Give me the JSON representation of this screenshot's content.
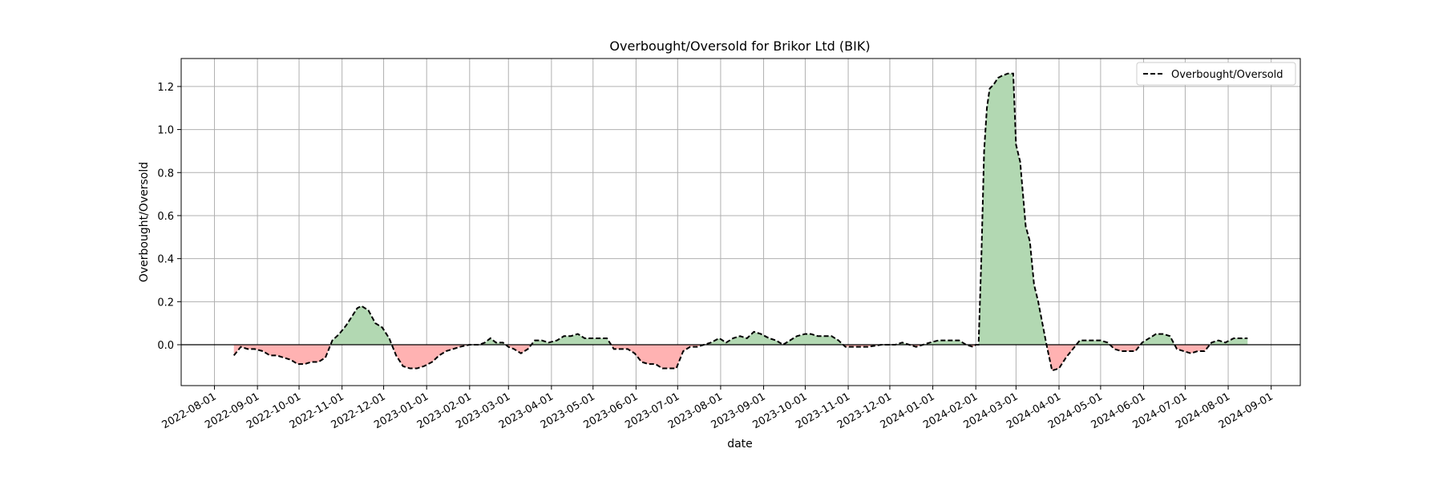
{
  "chart_data": {
    "type": "area",
    "title": "Overbought/Oversold for Brikor Ltd (BIK)",
    "xlabel": "date",
    "ylabel": "Overbought/Oversold",
    "xlim": [
      "2022-07-08",
      "2024-09-22"
    ],
    "ylim": [
      -0.19,
      1.33
    ],
    "grid": true,
    "legend": {
      "position": "top-right",
      "entries": [
        "Overbought/Oversold"
      ]
    },
    "x_ticks": [
      "2022-08-01",
      "2022-09-01",
      "2022-10-01",
      "2022-11-01",
      "2022-12-01",
      "2023-01-01",
      "2023-02-01",
      "2023-03-01",
      "2023-04-01",
      "2023-05-01",
      "2023-06-01",
      "2023-07-01",
      "2023-08-01",
      "2023-09-01",
      "2023-10-01",
      "2023-11-01",
      "2023-12-01",
      "2024-01-01",
      "2024-02-01",
      "2024-03-01",
      "2024-04-01",
      "2024-05-01",
      "2024-06-01",
      "2024-07-01",
      "2024-08-01",
      "2024-09-01"
    ],
    "y_ticks": [
      "0.0",
      "0.2",
      "0.4",
      "0.6",
      "0.8",
      "1.0",
      "1.2"
    ],
    "colors": {
      "line": "#000000",
      "positive_fill": "#b2d8b2",
      "negative_fill": "#ffb2b2",
      "zero_line": "#000000",
      "grid": "#b0b0b0"
    },
    "series": [
      {
        "name": "Overbought/Oversold",
        "line_style": "dashed",
        "points": [
          [
            "2022-08-15",
            -0.05
          ],
          [
            "2022-08-20",
            -0.01
          ],
          [
            "2022-08-25",
            -0.02
          ],
          [
            "2022-08-30",
            -0.02
          ],
          [
            "2022-09-05",
            -0.03
          ],
          [
            "2022-09-10",
            -0.05
          ],
          [
            "2022-09-15",
            -0.05
          ],
          [
            "2022-09-20",
            -0.06
          ],
          [
            "2022-09-25",
            -0.07
          ],
          [
            "2022-09-30",
            -0.09
          ],
          [
            "2022-10-05",
            -0.09
          ],
          [
            "2022-10-10",
            -0.08
          ],
          [
            "2022-10-15",
            -0.08
          ],
          [
            "2022-10-20",
            -0.06
          ],
          [
            "2022-10-25",
            0.02
          ],
          [
            "2022-10-30",
            0.05
          ],
          [
            "2022-11-04",
            0.09
          ],
          [
            "2022-11-08",
            0.13
          ],
          [
            "2022-11-12",
            0.17
          ],
          [
            "2022-11-15",
            0.18
          ],
          [
            "2022-11-20",
            0.16
          ],
          [
            "2022-11-25",
            0.1
          ],
          [
            "2022-11-30",
            0.08
          ],
          [
            "2022-12-05",
            0.03
          ],
          [
            "2022-12-10",
            -0.05
          ],
          [
            "2022-12-15",
            -0.1
          ],
          [
            "2022-12-20",
            -0.11
          ],
          [
            "2022-12-25",
            -0.11
          ],
          [
            "2022-12-30",
            -0.1
          ],
          [
            "2023-01-05",
            -0.08
          ],
          [
            "2023-01-10",
            -0.05
          ],
          [
            "2023-01-15",
            -0.03
          ],
          [
            "2023-01-20",
            -0.02
          ],
          [
            "2023-01-25",
            -0.01
          ],
          [
            "2023-02-01",
            0.0
          ],
          [
            "2023-02-08",
            0.0
          ],
          [
            "2023-02-12",
            0.01
          ],
          [
            "2023-02-16",
            0.03
          ],
          [
            "2023-02-20",
            0.01
          ],
          [
            "2023-02-25",
            0.01
          ],
          [
            "2023-03-01",
            -0.01
          ],
          [
            "2023-03-05",
            -0.02
          ],
          [
            "2023-03-10",
            -0.04
          ],
          [
            "2023-03-15",
            -0.02
          ],
          [
            "2023-03-20",
            0.02
          ],
          [
            "2023-03-25",
            0.02
          ],
          [
            "2023-03-30",
            0.01
          ],
          [
            "2023-04-05",
            0.02
          ],
          [
            "2023-04-10",
            0.04
          ],
          [
            "2023-04-15",
            0.04
          ],
          [
            "2023-04-20",
            0.05
          ],
          [
            "2023-04-25",
            0.03
          ],
          [
            "2023-05-01",
            0.03
          ],
          [
            "2023-05-06",
            0.03
          ],
          [
            "2023-05-11",
            0.03
          ],
          [
            "2023-05-16",
            -0.02
          ],
          [
            "2023-05-21",
            -0.02
          ],
          [
            "2023-05-26",
            -0.02
          ],
          [
            "2023-05-31",
            -0.04
          ],
          [
            "2023-06-05",
            -0.08
          ],
          [
            "2023-06-10",
            -0.09
          ],
          [
            "2023-06-15",
            -0.09
          ],
          [
            "2023-06-20",
            -0.11
          ],
          [
            "2023-06-25",
            -0.11
          ],
          [
            "2023-06-30",
            -0.11
          ],
          [
            "2023-07-05",
            -0.03
          ],
          [
            "2023-07-10",
            -0.01
          ],
          [
            "2023-07-15",
            -0.01
          ],
          [
            "2023-07-20",
            0.0
          ],
          [
            "2023-07-25",
            0.01
          ],
          [
            "2023-07-31",
            0.03
          ],
          [
            "2023-08-05",
            0.01
          ],
          [
            "2023-08-10",
            0.03
          ],
          [
            "2023-08-15",
            0.04
          ],
          [
            "2023-08-20",
            0.03
          ],
          [
            "2023-08-25",
            0.06
          ],
          [
            "2023-08-30",
            0.05
          ],
          [
            "2023-09-05",
            0.03
          ],
          [
            "2023-09-10",
            0.02
          ],
          [
            "2023-09-15",
            0.0
          ],
          [
            "2023-09-20",
            0.02
          ],
          [
            "2023-09-25",
            0.04
          ],
          [
            "2023-10-01",
            0.05
          ],
          [
            "2023-10-05",
            0.05
          ],
          [
            "2023-10-10",
            0.04
          ],
          [
            "2023-10-15",
            0.04
          ],
          [
            "2023-10-20",
            0.04
          ],
          [
            "2023-10-25",
            0.02
          ],
          [
            "2023-10-30",
            -0.01
          ],
          [
            "2023-11-05",
            -0.01
          ],
          [
            "2023-11-15",
            -0.01
          ],
          [
            "2023-11-25",
            0.0
          ],
          [
            "2023-12-05",
            0.0
          ],
          [
            "2023-12-10",
            0.01
          ],
          [
            "2023-12-15",
            0.0
          ],
          [
            "2023-12-20",
            -0.01
          ],
          [
            "2023-12-25",
            0.0
          ],
          [
            "2023-12-30",
            0.01
          ],
          [
            "2024-01-05",
            0.02
          ],
          [
            "2024-01-10",
            0.02
          ],
          [
            "2024-01-20",
            0.02
          ],
          [
            "2024-01-25",
            0.0
          ],
          [
            "2024-01-30",
            -0.01
          ],
          [
            "2024-02-01",
            0.0
          ],
          [
            "2024-02-03",
            0.0
          ],
          [
            "2024-02-05",
            0.4
          ],
          [
            "2024-02-07",
            0.9
          ],
          [
            "2024-02-09",
            1.1
          ],
          [
            "2024-02-11",
            1.19
          ],
          [
            "2024-02-14",
            1.21
          ],
          [
            "2024-02-17",
            1.24
          ],
          [
            "2024-02-20",
            1.25
          ],
          [
            "2024-02-24",
            1.26
          ],
          [
            "2024-02-28",
            1.26
          ],
          [
            "2024-03-01",
            0.93
          ],
          [
            "2024-03-04",
            0.85
          ],
          [
            "2024-03-08",
            0.55
          ],
          [
            "2024-03-11",
            0.48
          ],
          [
            "2024-03-14",
            0.28
          ],
          [
            "2024-03-17",
            0.2
          ],
          [
            "2024-03-20",
            0.1
          ],
          [
            "2024-03-23",
            0.0
          ],
          [
            "2024-03-27",
            -0.12
          ],
          [
            "2024-04-01",
            -0.11
          ],
          [
            "2024-04-06",
            -0.06
          ],
          [
            "2024-04-11",
            -0.02
          ],
          [
            "2024-04-16",
            0.02
          ],
          [
            "2024-04-21",
            0.02
          ],
          [
            "2024-04-26",
            0.02
          ],
          [
            "2024-05-01",
            0.02
          ],
          [
            "2024-05-06",
            0.01
          ],
          [
            "2024-05-11",
            -0.02
          ],
          [
            "2024-05-16",
            -0.03
          ],
          [
            "2024-05-21",
            -0.03
          ],
          [
            "2024-05-26",
            -0.03
          ],
          [
            "2024-05-31",
            0.01
          ],
          [
            "2024-06-05",
            0.03
          ],
          [
            "2024-06-10",
            0.05
          ],
          [
            "2024-06-15",
            0.05
          ],
          [
            "2024-06-20",
            0.04
          ],
          [
            "2024-06-25",
            -0.02
          ],
          [
            "2024-06-30",
            -0.03
          ],
          [
            "2024-07-05",
            -0.04
          ],
          [
            "2024-07-10",
            -0.03
          ],
          [
            "2024-07-15",
            -0.03
          ],
          [
            "2024-07-20",
            0.01
          ],
          [
            "2024-07-25",
            0.02
          ],
          [
            "2024-07-30",
            0.01
          ],
          [
            "2024-08-05",
            0.03
          ],
          [
            "2024-08-10",
            0.03
          ],
          [
            "2024-08-15",
            0.03
          ]
        ]
      }
    ]
  }
}
